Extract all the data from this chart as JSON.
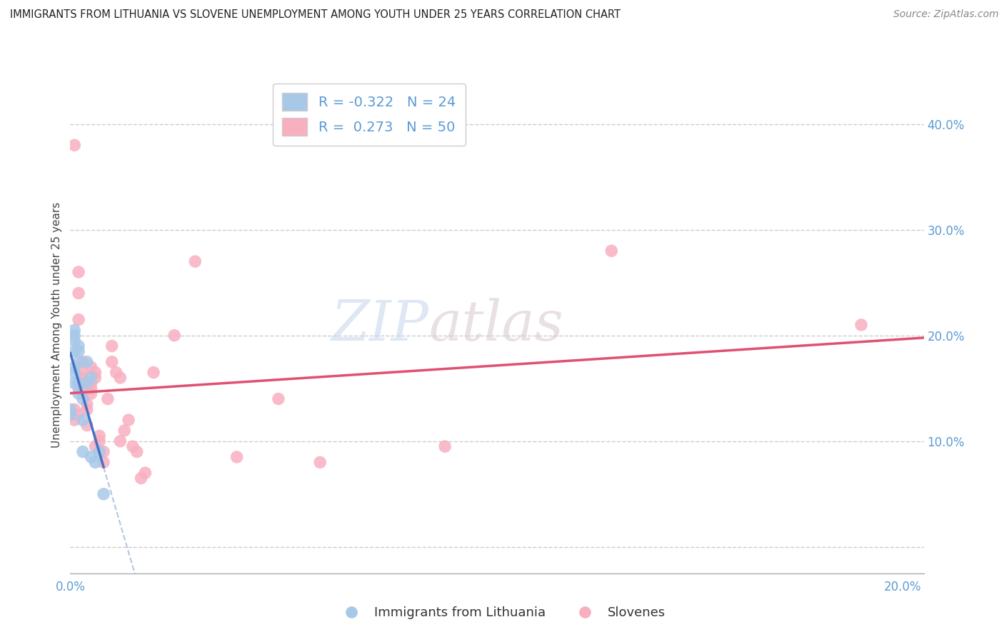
{
  "title": "IMMIGRANTS FROM LITHUANIA VS SLOVENE UNEMPLOYMENT AMONG YOUTH UNDER 25 YEARS CORRELATION CHART",
  "source": "Source: ZipAtlas.com",
  "ylabel": "Unemployment Among Youth under 25 years",
  "legend_label1": "Immigrants from Lithuania",
  "legend_label2": "Slovenes",
  "R1": -0.322,
  "N1": 24,
  "R2": 0.273,
  "N2": 50,
  "blue_color": "#a8c8e8",
  "pink_color": "#f8b0c0",
  "blue_line_color": "#4472c4",
  "pink_line_color": "#e05070",
  "blue_dash_color": "#a0b8d8",
  "watermark_zip": "ZIP",
  "watermark_atlas": "atlas",
  "background_color": "#ffffff",
  "xlim": [
    0.0,
    0.205
  ],
  "ylim": [
    -0.025,
    0.445
  ],
  "yticks": [
    0.0,
    0.1,
    0.2,
    0.3,
    0.4
  ],
  "xtick_positions": [
    0.0,
    0.05,
    0.1,
    0.15,
    0.2
  ],
  "scatter_blue": [
    [
      0.0,
      0.125
    ],
    [
      0.0,
      0.13
    ],
    [
      0.001,
      0.185
    ],
    [
      0.001,
      0.195
    ],
    [
      0.001,
      0.17
    ],
    [
      0.001,
      0.205
    ],
    [
      0.001,
      0.155
    ],
    [
      0.001,
      0.165
    ],
    [
      0.001,
      0.2
    ],
    [
      0.002,
      0.175
    ],
    [
      0.002,
      0.19
    ],
    [
      0.002,
      0.185
    ],
    [
      0.002,
      0.155
    ],
    [
      0.002,
      0.145
    ],
    [
      0.003,
      0.14
    ],
    [
      0.003,
      0.12
    ],
    [
      0.003,
      0.09
    ],
    [
      0.004,
      0.175
    ],
    [
      0.004,
      0.155
    ],
    [
      0.005,
      0.16
    ],
    [
      0.005,
      0.085
    ],
    [
      0.006,
      0.08
    ],
    [
      0.007,
      0.09
    ],
    [
      0.008,
      0.05
    ]
  ],
  "scatter_pink": [
    [
      0.0,
      0.125
    ],
    [
      0.001,
      0.13
    ],
    [
      0.001,
      0.38
    ],
    [
      0.001,
      0.12
    ],
    [
      0.002,
      0.26
    ],
    [
      0.002,
      0.125
    ],
    [
      0.002,
      0.215
    ],
    [
      0.002,
      0.24
    ],
    [
      0.002,
      0.15
    ],
    [
      0.003,
      0.155
    ],
    [
      0.003,
      0.145
    ],
    [
      0.003,
      0.16
    ],
    [
      0.003,
      0.165
    ],
    [
      0.003,
      0.175
    ],
    [
      0.004,
      0.13
    ],
    [
      0.004,
      0.135
    ],
    [
      0.004,
      0.115
    ],
    [
      0.004,
      0.155
    ],
    [
      0.005,
      0.145
    ],
    [
      0.005,
      0.15
    ],
    [
      0.005,
      0.155
    ],
    [
      0.005,
      0.17
    ],
    [
      0.006,
      0.16
    ],
    [
      0.006,
      0.165
    ],
    [
      0.006,
      0.095
    ],
    [
      0.007,
      0.1
    ],
    [
      0.007,
      0.105
    ],
    [
      0.008,
      0.09
    ],
    [
      0.008,
      0.08
    ],
    [
      0.009,
      0.14
    ],
    [
      0.01,
      0.19
    ],
    [
      0.01,
      0.175
    ],
    [
      0.011,
      0.165
    ],
    [
      0.012,
      0.16
    ],
    [
      0.012,
      0.1
    ],
    [
      0.013,
      0.11
    ],
    [
      0.014,
      0.12
    ],
    [
      0.015,
      0.095
    ],
    [
      0.016,
      0.09
    ],
    [
      0.017,
      0.065
    ],
    [
      0.018,
      0.07
    ],
    [
      0.02,
      0.165
    ],
    [
      0.025,
      0.2
    ],
    [
      0.03,
      0.27
    ],
    [
      0.04,
      0.085
    ],
    [
      0.05,
      0.14
    ],
    [
      0.06,
      0.08
    ],
    [
      0.09,
      0.095
    ],
    [
      0.13,
      0.28
    ],
    [
      0.19,
      0.21
    ]
  ]
}
